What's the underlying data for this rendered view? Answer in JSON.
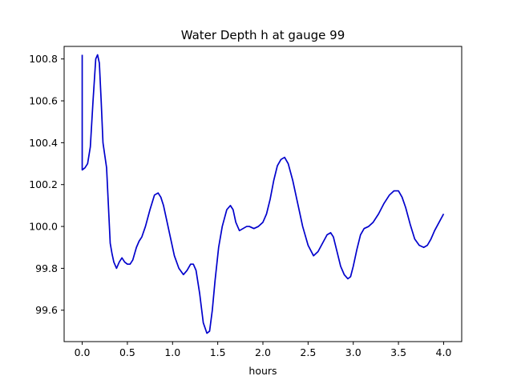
{
  "chart_data": {
    "type": "line",
    "title": "Water Depth h at gauge 99",
    "xlabel": "hours",
    "ylabel": "",
    "xlim": [
      -0.2,
      4.2
    ],
    "ylim": [
      99.45,
      100.86
    ],
    "grid": false,
    "xticks": [
      0.0,
      0.5,
      1.0,
      1.5,
      2.0,
      2.5,
      3.0,
      3.5,
      4.0
    ],
    "xtick_labels": [
      "0.0",
      "0.5",
      "1.0",
      "1.5",
      "2.0",
      "2.5",
      "3.0",
      "3.5",
      "4.0"
    ],
    "yticks": [
      99.6,
      99.8,
      100.0,
      100.2,
      100.4,
      100.6,
      100.8
    ],
    "ytick_labels": [
      "99.6",
      "99.8",
      "100.0",
      "100.2",
      "100.4",
      "100.6",
      "100.8"
    ],
    "series": [
      {
        "color": "#0000cc",
        "x": [
          0.0,
          0.0,
          0.0,
          0.03,
          0.06,
          0.09,
          0.12,
          0.15,
          0.17,
          0.19,
          0.21,
          0.23,
          0.25,
          0.27,
          0.29,
          0.31,
          0.33,
          0.35,
          0.38,
          0.41,
          0.44,
          0.47,
          0.5,
          0.53,
          0.56,
          0.6,
          0.63,
          0.66,
          0.7,
          0.75,
          0.8,
          0.84,
          0.87,
          0.9,
          0.93,
          0.97,
          1.02,
          1.07,
          1.12,
          1.16,
          1.2,
          1.23,
          1.26,
          1.3,
          1.34,
          1.38,
          1.41,
          1.44,
          1.47,
          1.51,
          1.55,
          1.6,
          1.64,
          1.67,
          1.7,
          1.74,
          1.78,
          1.82,
          1.85,
          1.9,
          1.95,
          2.0,
          2.04,
          2.08,
          2.12,
          2.16,
          2.2,
          2.24,
          2.28,
          2.33,
          2.38,
          2.44,
          2.5,
          2.56,
          2.61,
          2.66,
          2.71,
          2.75,
          2.78,
          2.82,
          2.86,
          2.9,
          2.94,
          2.97,
          3.0,
          3.04,
          3.08,
          3.12,
          3.17,
          3.22,
          3.28,
          3.34,
          3.4,
          3.45,
          3.5,
          3.54,
          3.58,
          3.63,
          3.68,
          3.73,
          3.78,
          3.82,
          3.86,
          3.9,
          3.95,
          4.0
        ],
        "y": [
          100.82,
          100.27,
          100.27,
          100.28,
          100.3,
          100.38,
          100.6,
          100.8,
          100.82,
          100.78,
          100.6,
          100.4,
          100.34,
          100.28,
          100.1,
          99.92,
          99.87,
          99.83,
          99.8,
          99.83,
          99.85,
          99.83,
          99.82,
          99.82,
          99.84,
          99.9,
          99.93,
          99.95,
          100.0,
          100.08,
          100.15,
          100.16,
          100.14,
          100.1,
          100.04,
          99.96,
          99.86,
          99.8,
          99.77,
          99.79,
          99.82,
          99.82,
          99.79,
          99.68,
          99.54,
          99.49,
          99.5,
          99.6,
          99.74,
          99.9,
          100.0,
          100.08,
          100.1,
          100.08,
          100.02,
          99.98,
          99.99,
          100.0,
          100.0,
          99.99,
          100.0,
          100.02,
          100.06,
          100.13,
          100.22,
          100.29,
          100.32,
          100.33,
          100.3,
          100.22,
          100.12,
          100.0,
          99.91,
          99.86,
          99.88,
          99.92,
          99.96,
          99.97,
          99.95,
          99.88,
          99.81,
          99.77,
          99.75,
          99.76,
          99.81,
          99.89,
          99.96,
          99.99,
          100.0,
          100.02,
          100.06,
          100.11,
          100.15,
          100.17,
          100.17,
          100.14,
          100.09,
          100.01,
          99.94,
          99.91,
          99.9,
          99.91,
          99.94,
          99.98,
          100.02,
          100.06
        ]
      }
    ]
  }
}
